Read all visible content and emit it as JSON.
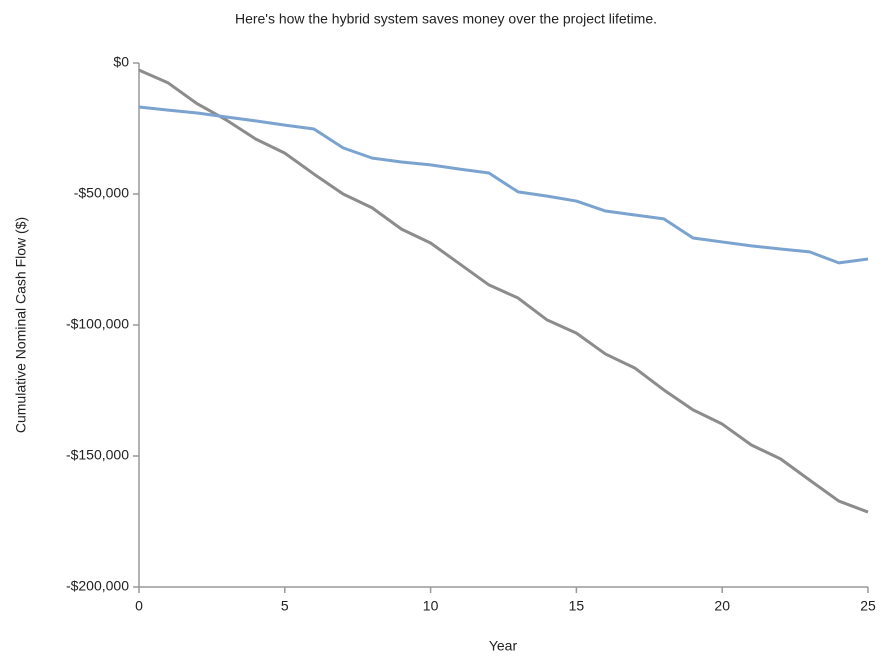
{
  "chart_data": {
    "type": "line",
    "title": "Here's how the hybrid system saves money over the project lifetime.",
    "x_label": "Year",
    "y_label": "Cumulative Nominal Cash Flow ($)",
    "x": [
      0,
      1,
      2,
      3,
      4,
      5,
      6,
      7,
      8,
      9,
      10,
      11,
      12,
      13,
      14,
      15,
      16,
      17,
      18,
      19,
      20,
      21,
      22,
      23,
      24,
      25
    ],
    "series": [
      {
        "color": "#7ba3cf",
        "values": [
          -16800,
          -18000,
          -19100,
          -20600,
          -22100,
          -23700,
          -25200,
          -32400,
          -36300,
          -37800,
          -38900,
          -40500,
          -42000,
          -49200,
          -50800,
          -52700,
          -56500,
          -58000,
          -59500,
          -66800,
          -68300,
          -69800,
          -71000,
          -72100,
          -76300,
          -74800
        ]
      },
      {
        "color": "#8c8c8c",
        "values": [
          -2700,
          -7600,
          -15600,
          -21800,
          -29000,
          -34400,
          -42400,
          -50000,
          -55300,
          -63400,
          -68700,
          -76700,
          -84700,
          -89700,
          -98100,
          -103100,
          -111100,
          -116400,
          -124800,
          -132400,
          -137800,
          -145800,
          -151100,
          -159200,
          -167200,
          -171400
        ]
      }
    ],
    "xlim": [
      0,
      25
    ],
    "xticks": [
      0,
      5,
      10,
      15,
      20,
      25
    ],
    "ylim": [
      -200000,
      0
    ],
    "yticks": [
      {
        "value": 0,
        "label": "$0"
      },
      {
        "value": -50000,
        "label": "-$50,000"
      },
      {
        "value": -100000,
        "label": "-$100,000"
      },
      {
        "value": -150000,
        "label": "-$150,000"
      },
      {
        "value": -200000,
        "label": "-$200,000"
      }
    ],
    "grid": false
  }
}
